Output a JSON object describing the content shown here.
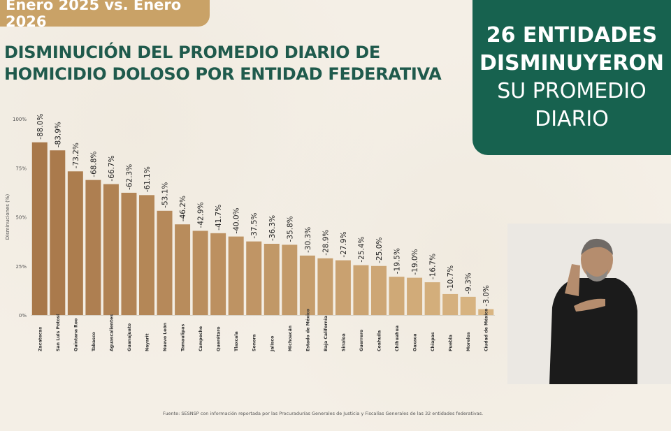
{
  "header": {
    "date_label": "Enero 2025 vs. Enero 2026",
    "title_line1": "DISMINUCIÓN DEL PROMEDIO DIARIO DE",
    "title_line2": "HOMICIDIO DOLOSO POR ENTIDAD FEDERATIVA"
  },
  "callout": {
    "line1": "26 ENTIDADES",
    "line2": "DISMINUYERON",
    "line3": "SU PROMEDIO",
    "line4": "DIARIO"
  },
  "source": "Fuente: SESNSP con información reportada por las Procuradurías Generales de Justicia y Fiscalías Generales de las 32 entidades federativas.",
  "colors": {
    "bar_dark": "#a8784a",
    "bar_light": "#d7b27f",
    "accent_green": "#17624f",
    "tab_gold": "#c9a267"
  },
  "chart_data": {
    "type": "bar",
    "ylabel": "Disminuciones (%)",
    "ylim": [
      0,
      100
    ],
    "yticks": [
      0,
      25,
      50,
      75,
      100
    ],
    "ytick_labels": [
      "0%",
      "25%",
      "50%",
      "75%",
      "100%"
    ],
    "grid": false,
    "categories": [
      "Zacatecas",
      "San Luis Potosí",
      "Quintana Roo",
      "Tabasco",
      "Aguascalientes",
      "Guanajuato",
      "Nayarit",
      "Nuevo León",
      "Tamaulipas",
      "Campeche",
      "Querétaro",
      "Tlaxcala",
      "Sonora",
      "Jalisco",
      "Michoacán",
      "Estado de México",
      "Baja California",
      "Sinaloa",
      "Guerrero",
      "Coahuila",
      "Chihuahua",
      "Oaxaca",
      "Chiapas",
      "Puebla",
      "Morelos",
      "Ciudad de México"
    ],
    "values": [
      88.0,
      83.9,
      73.2,
      68.8,
      66.7,
      62.3,
      61.1,
      53.1,
      46.2,
      42.9,
      41.7,
      40.0,
      37.5,
      36.3,
      35.8,
      30.3,
      28.9,
      27.9,
      25.4,
      25.0,
      19.5,
      19.0,
      16.7,
      10.7,
      9.3,
      3.0
    ],
    "data_labels": [
      "-88.0%",
      "-83.9%",
      "-73.2%",
      "-68.8%",
      "-66.7%",
      "-62.3%",
      "-61.1%",
      "-53.1%",
      "-46.2%",
      "-42.9%",
      "-41.7%",
      "-40.0%",
      "-37.5%",
      "-36.3%",
      "-35.8%",
      "-30.3%",
      "-28.9%",
      "-27.9%",
      "-25.4%",
      "-25.0%",
      "-19.5%",
      "-19.0%",
      "-16.7%",
      "-10.7%",
      "-9.3%",
      "-3.0%"
    ]
  }
}
